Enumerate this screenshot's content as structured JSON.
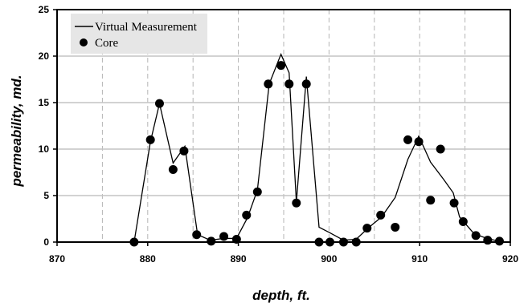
{
  "chart_data": {
    "type": "scatter",
    "xlabel": "depth, ft.",
    "ylabel": "permeability, md.",
    "xlim": [
      870,
      920
    ],
    "ylim": [
      0,
      25
    ],
    "xticks": [
      870,
      880,
      890,
      900,
      910,
      920
    ],
    "yticks": [
      0,
      5,
      10,
      15,
      20,
      25
    ],
    "grid": true,
    "legend_position": "top-left",
    "series": [
      {
        "name": "Virtual Measurement",
        "kind": "line",
        "color": "#000000",
        "x": [
          878.5,
          880.3,
          881.3,
          882.8,
          884.1,
          885.5,
          886.9,
          888.4,
          889.8,
          891.0,
          892.1,
          893.4,
          894.7,
          895.6,
          896.4,
          897.5,
          898.9,
          900.1,
          901.6,
          903.0,
          904.3,
          905.8,
          907.3,
          908.7,
          909.9,
          911.2,
          912.6,
          913.7,
          914.4,
          916.0,
          917.4,
          918.7
        ],
        "y": [
          0.0,
          10.8,
          14.9,
          8.5,
          10.3,
          0.8,
          0.2,
          0.4,
          0.4,
          2.6,
          5.6,
          17.0,
          20.2,
          18.2,
          4.3,
          17.8,
          1.6,
          1.0,
          0.2,
          0.3,
          1.5,
          2.7,
          4.8,
          8.9,
          11.4,
          8.6,
          6.8,
          5.3,
          2.7,
          0.9,
          0.4,
          0.1
        ]
      },
      {
        "name": "Core",
        "kind": "points",
        "color": "#000000",
        "x": [
          878.5,
          880.3,
          881.3,
          882.8,
          884.0,
          885.4,
          887.0,
          888.4,
          889.8,
          890.9,
          892.1,
          893.3,
          894.7,
          895.6,
          896.4,
          897.5,
          898.9,
          900.1,
          901.6,
          903.0,
          904.2,
          905.7,
          907.3,
          908.7,
          909.9,
          911.2,
          912.3,
          913.8,
          914.8,
          916.2,
          917.5,
          918.8
        ],
        "y": [
          0.0,
          11.0,
          14.9,
          7.8,
          9.8,
          0.8,
          0.1,
          0.6,
          0.3,
          2.9,
          5.4,
          17.0,
          19.0,
          17.0,
          4.2,
          17.0,
          0.0,
          0.0,
          0.0,
          0.0,
          1.5,
          2.9,
          1.6,
          11.0,
          10.8,
          4.5,
          10.0,
          4.2,
          2.2,
          0.7,
          0.2,
          0.1
        ]
      }
    ]
  }
}
